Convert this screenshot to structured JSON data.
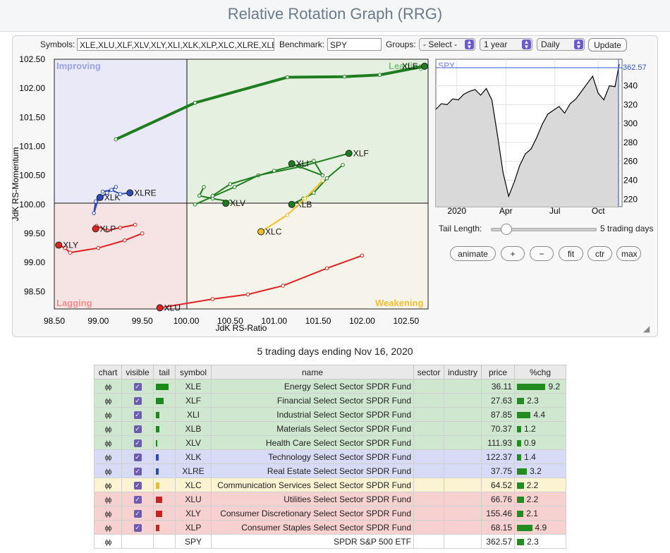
{
  "title": "Relative Rotation Graph (RRG)",
  "controls": {
    "symbols_label": "Symbols:",
    "symbols_value": "XLE,XLU,XLF,XLV,XLY,XLI,XLK,XLP,XLC,XLRE,XLB",
    "benchmark_label": "Benchmark:",
    "benchmark_value": "SPY",
    "groups_label": "Groups:",
    "groups_value": "- Select -",
    "period_value": "1 year",
    "frequency_value": "Daily",
    "update_label": "Update"
  },
  "chart_data": [
    {
      "type": "scatter",
      "title": "",
      "xlabel": "JdK RS-Ratio",
      "ylabel": "JdK RS-Momentum",
      "xlim": [
        98.5,
        102.75
      ],
      "ylim": [
        98.2,
        102.5
      ],
      "xticks": [
        "98.50",
        "99.00",
        "99.50",
        "100.00",
        "100.50",
        "101.00",
        "101.50",
        "102.00",
        "102.50"
      ],
      "yticks": [
        "98.50",
        "99.00",
        "99.50",
        "100.00",
        "100.50",
        "101.00",
        "101.50",
        "102.00",
        "102.50"
      ],
      "quadrants": {
        "top_left": "Improving",
        "top_right": "Leading",
        "bottom_left": "Lagging",
        "bottom_right": "Weakening"
      },
      "series": [
        {
          "name": "XLE",
          "color": "#1e7d1e",
          "points": [
            [
              99.2,
              101.12
            ],
            [
              100.1,
              101.75
            ],
            [
              101.15,
              102.19
            ],
            [
              101.8,
              102.2
            ],
            [
              102.2,
              102.23
            ],
            [
              102.71,
              102.38
            ]
          ]
        },
        {
          "name": "XLF",
          "color": "#1e7d1e",
          "points": [
            [
              100.1,
              100.0
            ],
            [
              100.55,
              100.3
            ],
            [
              100.82,
              100.5
            ],
            [
              101.3,
              100.65
            ],
            [
              101.85,
              100.88
            ]
          ]
        },
        {
          "name": "XLI",
          "color": "#1e7d1e",
          "points": [
            [
              100.3,
              100.15
            ],
            [
              100.5,
              100.35
            ],
            [
              101.0,
              100.58
            ],
            [
              101.45,
              100.75
            ],
            [
              101.55,
              100.5
            ],
            [
              101.2,
              100.7
            ]
          ]
        },
        {
          "name": "XLB",
          "color": "#1e7d1e",
          "points": [
            [
              101.78,
              100.68
            ],
            [
              101.6,
              100.45
            ],
            [
              101.45,
              100.2
            ],
            [
              101.33,
              100.1
            ],
            [
              101.2,
              100.0
            ]
          ]
        },
        {
          "name": "XLV",
          "color": "#1e7d1e",
          "points": [
            [
              100.2,
              100.3
            ],
            [
              100.15,
              100.15
            ],
            [
              100.3,
              100.1
            ],
            [
              100.5,
              100.05
            ],
            [
              100.45,
              100.02
            ]
          ]
        },
        {
          "name": "XLK",
          "color": "#2c4bb5",
          "points": [
            [
              99.2,
              100.3
            ],
            [
              99.1,
              100.2
            ],
            [
              98.97,
              100.05
            ],
            [
              98.95,
              99.85
            ],
            [
              99.0,
              100.1
            ],
            [
              99.02,
              100.12
            ]
          ]
        },
        {
          "name": "XLRE",
          "color": "#2c4bb5",
          "points": [
            [
              99.05,
              100.22
            ],
            [
              99.15,
              100.25
            ],
            [
              99.25,
              100.18
            ],
            [
              99.36,
              100.2
            ]
          ]
        },
        {
          "name": "XLC",
          "color": "#f0c020",
          "points": [
            [
              101.55,
              100.41
            ],
            [
              101.35,
              100.1
            ],
            [
              101.15,
              99.82
            ],
            [
              100.85,
              99.53
            ]
          ]
        },
        {
          "name": "XLU",
          "color": "#dd2222",
          "points": [
            [
              102.0,
              99.12
            ],
            [
              101.6,
              98.9
            ],
            [
              101.1,
              98.6
            ],
            [
              100.7,
              98.45
            ],
            [
              100.3,
              98.37
            ],
            [
              99.7,
              98.22
            ]
          ]
        },
        {
          "name": "XLY",
          "color": "#dd2222",
          "points": [
            [
              99.5,
              99.5
            ],
            [
              99.3,
              99.38
            ],
            [
              99.0,
              99.25
            ],
            [
              98.68,
              99.17
            ],
            [
              98.62,
              99.25
            ],
            [
              98.55,
              99.3
            ]
          ]
        },
        {
          "name": "XLP",
          "color": "#dd2222",
          "points": [
            [
              99.42,
              99.65
            ],
            [
              99.25,
              99.6
            ],
            [
              99.1,
              99.55
            ],
            [
              98.98,
              99.63
            ],
            [
              98.97,
              99.58
            ]
          ]
        }
      ]
    },
    {
      "type": "area",
      "title": "SPY",
      "last_value": "362.57",
      "xticks": [
        "2020",
        "Apr",
        "Jul",
        "Oct"
      ],
      "yticks": [
        "220",
        "240",
        "260",
        "280",
        "300",
        "320",
        "340"
      ],
      "ylim": [
        212,
        368
      ],
      "x": [
        0,
        8,
        16,
        24,
        32,
        40,
        48,
        56,
        64,
        72,
        80,
        88,
        96,
        104,
        112,
        120,
        128,
        136,
        144,
        152,
        160,
        168,
        176,
        184,
        192,
        200,
        208,
        216,
        224,
        232,
        240,
        248,
        256,
        262
      ],
      "values": [
        315,
        321,
        320,
        326,
        325,
        331,
        334,
        336,
        330,
        337,
        325,
        288,
        248,
        223,
        238,
        256,
        268,
        273,
        285,
        299,
        310,
        314,
        318,
        311,
        321,
        326,
        334,
        342,
        350,
        332,
        325,
        340,
        339,
        362.57
      ]
    }
  ],
  "spy_chart": {
    "series_label": "SPY",
    "last_value": "362.57"
  },
  "tail": {
    "label": "Tail Length:",
    "value_text": "5 trading days",
    "value": 5
  },
  "buttons": {
    "animate": "animate",
    "plus": "+",
    "minus": "−",
    "fit": "fit",
    "ctr": "ctr",
    "max": "max"
  },
  "caption": "5 trading days ending Nov 16, 2020",
  "table": {
    "headers": [
      "chart",
      "visible",
      "tail",
      "symbol",
      "name",
      "sector",
      "industry",
      "price",
      "%chg"
    ],
    "rows": [
      {
        "quadrant": "leading",
        "symbol": "XLE",
        "name": "Energy Select Sector SPDR Fund",
        "price": "36.11",
        "chg": "9.2",
        "chg_value": 9.2,
        "tail_color": "#1a8a1a",
        "tail_len": 5
      },
      {
        "quadrant": "leading",
        "symbol": "XLF",
        "name": "Financial Select Sector SPDR Fund",
        "price": "27.63",
        "chg": "2.3",
        "chg_value": 2.3,
        "tail_color": "#1a8a1a",
        "tail_len": 3
      },
      {
        "quadrant": "leading",
        "symbol": "XLI",
        "name": "Industrial Select Sector SPDR Fund",
        "price": "87.85",
        "chg": "4.4",
        "chg_value": 4.4,
        "tail_color": "#1a8a1a",
        "tail_len": 1.5
      },
      {
        "quadrant": "leading",
        "symbol": "XLB",
        "name": "Materials Select Sector SPDR Fund",
        "price": "70.37",
        "chg": "1.2",
        "chg_value": 1.2,
        "tail_color": "#1a8a1a",
        "tail_len": 1.5
      },
      {
        "quadrant": "leading",
        "symbol": "XLV",
        "name": "Health Care Select Sector SPDR Fund",
        "price": "111.93",
        "chg": "0.9",
        "chg_value": 0.9,
        "tail_color": "#1a8a1a",
        "tail_len": 0.6
      },
      {
        "quadrant": "improving",
        "symbol": "XLK",
        "name": "Technology Select Sector SPDR Fund",
        "price": "122.37",
        "chg": "1.4",
        "chg_value": 1.4,
        "tail_color": "#2c4bb5",
        "tail_len": 1
      },
      {
        "quadrant": "improving",
        "symbol": "XLRE",
        "name": "Real Estate Select Sector SPDR Fund",
        "price": "37.75",
        "chg": "3.2",
        "chg_value": 3.2,
        "tail_color": "#2c4bb5",
        "tail_len": 1
      },
      {
        "quadrant": "weakening",
        "symbol": "XLC",
        "name": "Communication Services Select Sector SPDR Fund",
        "price": "64.52",
        "chg": "2.2",
        "chg_value": 2.2,
        "tail_color": "#e8c020",
        "tail_len": 1.5
      },
      {
        "quadrant": "lagging",
        "symbol": "XLU",
        "name": "Utilities Select Sector SPDR Fund",
        "price": "66.76",
        "chg": "2.2",
        "chg_value": 2.2,
        "tail_color": "#cc1f1f",
        "tail_len": 2.5
      },
      {
        "quadrant": "lagging",
        "symbol": "XLY",
        "name": "Consumer Discretionary Select Sector SPDR Fund",
        "price": "155.46",
        "chg": "2.1",
        "chg_value": 2.1,
        "tail_color": "#cc1f1f",
        "tail_len": 2.5
      },
      {
        "quadrant": "lagging",
        "symbol": "XLP",
        "name": "Consumer Staples Select Sector SPDR Fund",
        "price": "68.15",
        "chg": "4.9",
        "chg_value": 4.9,
        "tail_color": "#cc1f1f",
        "tail_len": 1.5
      },
      {
        "quadrant": "bench",
        "symbol": "SPY",
        "name": "SPDR S&P 500 ETF",
        "price": "362.57",
        "chg": "2.3",
        "chg_value": 2.3,
        "tail_color": "",
        "tail_len": 0
      }
    ]
  }
}
